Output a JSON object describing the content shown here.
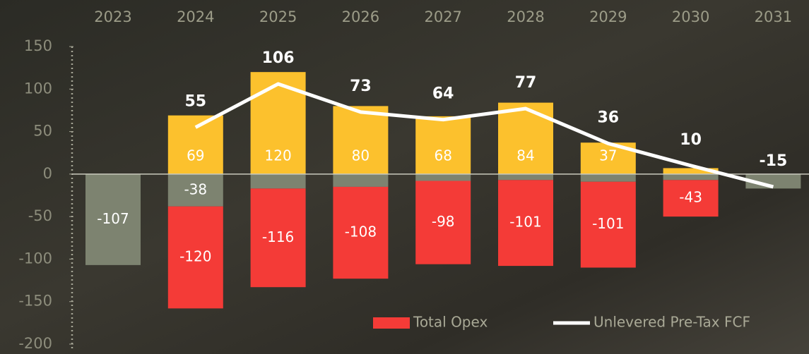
{
  "chart_data": {
    "type": "bar",
    "categories": [
      "2023",
      "2024",
      "2025",
      "2026",
      "2027",
      "2028",
      "2029",
      "2030",
      "2031"
    ],
    "series": [
      {
        "color": "#fcc12d",
        "values": [
          null,
          69,
          120,
          80,
          68,
          84,
          37,
          7,
          null
        ],
        "value_labels": [
          null,
          "69",
          "120",
          "80",
          "68",
          "84",
          "37",
          null,
          null
        ]
      },
      {
        "color": "#7d8370",
        "values": [
          -107,
          -38,
          -17,
          -15,
          -8,
          -7,
          -9,
          -7,
          -17
        ],
        "value_labels": [
          "-107",
          "-38",
          null,
          null,
          null,
          null,
          null,
          null,
          null
        ]
      },
      {
        "name": "Total Opex",
        "color": "#f43b37",
        "values": [
          null,
          -120,
          -116,
          -108,
          -98,
          -101,
          -101,
          -43,
          null
        ]
      },
      {
        "name": "Unlevered Pre-Tax FCF",
        "type": "line",
        "color": "#ffffff",
        "values": [
          null,
          55,
          106,
          73,
          64,
          77,
          36,
          10,
          -15
        ]
      }
    ],
    "ylim": [
      -200,
      150
    ],
    "yticks": [
      150,
      100,
      50,
      0,
      -50,
      -100,
      -150,
      -200
    ]
  }
}
